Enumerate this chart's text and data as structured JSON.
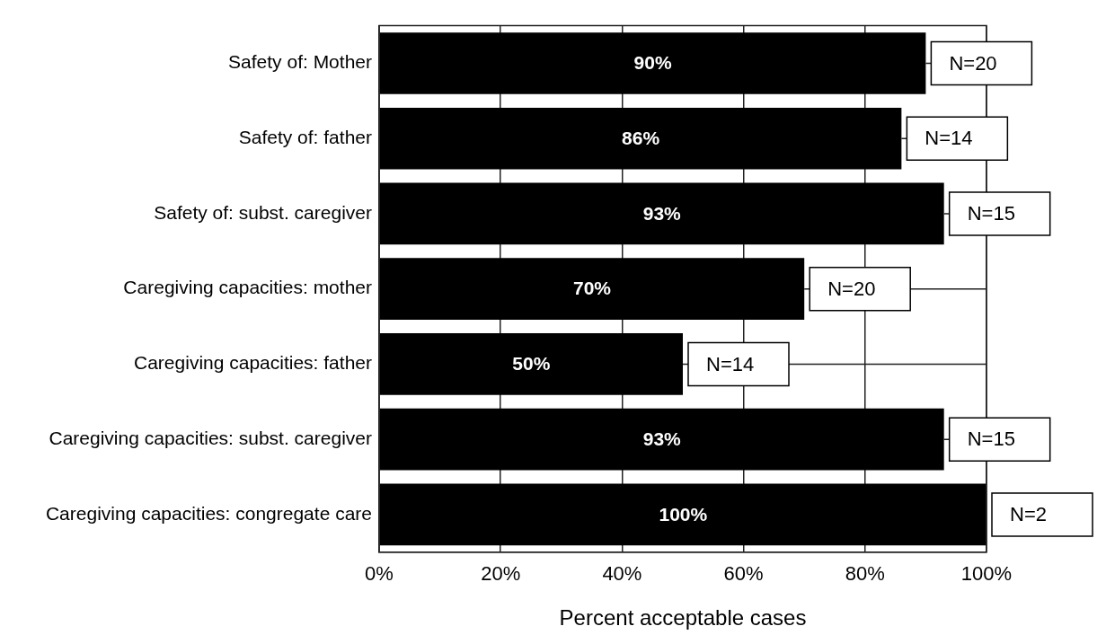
{
  "chart_data": {
    "type": "bar",
    "orientation": "horizontal",
    "categories": [
      "Safety of: Mother",
      "Safety of: father",
      "Safety of: subst. caregiver",
      "Caregiving capacities: mother",
      "Caregiving capacities: father",
      "Caregiving capacities: subst. caregiver",
      "Caregiving capacities: congregate care"
    ],
    "values": [
      90,
      86,
      93,
      70,
      50,
      93,
      100
    ],
    "color": "#000000",
    "value_labels": [
      "90%",
      "86%",
      "93%",
      "70%",
      "50%",
      "93%",
      "100%"
    ],
    "xlabel": "Percent acceptable cases",
    "xlim": [
      0,
      100
    ],
    "xticks": [
      {
        "value": 0,
        "label": "0%"
      },
      {
        "value": 20,
        "label": "20%"
      },
      {
        "value": 40,
        "label": "40%"
      },
      {
        "value": 60,
        "label": "60%"
      },
      {
        "value": 80,
        "label": "80%"
      },
      {
        "value": 100,
        "label": "100%"
      }
    ],
    "grid": "x",
    "annotations": [
      {
        "text": "N=20",
        "x": 90,
        "y": "Safety of: Mother"
      },
      {
        "text": "N=14",
        "x": 86,
        "y": "Safety of: father"
      },
      {
        "text": "N=15",
        "x": 93,
        "y": "Safety of: subst. caregiver"
      },
      {
        "text": "N=20",
        "x": 70,
        "y": "Caregiving capacities: mother"
      },
      {
        "text": "N=14",
        "x": 50,
        "y": "Caregiving capacities: father"
      },
      {
        "text": "N=15",
        "x": 93,
        "y": "Caregiving capacities: subst. caregiver"
      },
      {
        "text": "N=2",
        "x": 100,
        "y": "Caregiving capacities: congregate care"
      }
    ]
  }
}
